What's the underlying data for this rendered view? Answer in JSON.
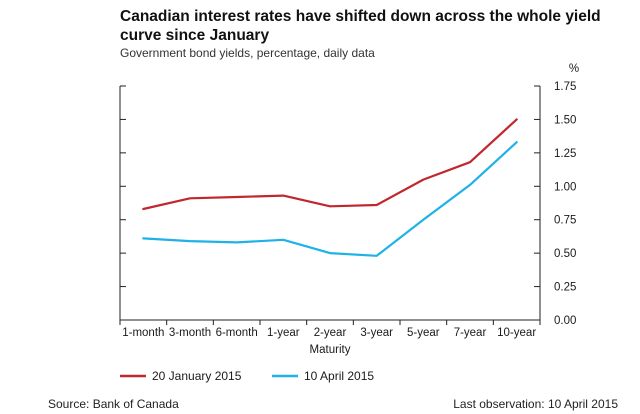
{
  "header": {
    "title": "Canadian interest rates have shifted down across the whole yield curve since January",
    "subtitle": "Government bond yields, percentage, daily data"
  },
  "footer": {
    "source": "Source: Bank of Canada",
    "last_observation": "Last observation: 10 April 2015"
  },
  "chart_data": {
    "type": "line",
    "categories": [
      "1-month",
      "3-month",
      "6-month",
      "1-year",
      "2-year",
      "3-year",
      "5-year",
      "7-year",
      "10-year"
    ],
    "xlabel": "Maturity",
    "yunit": "%",
    "ylim": [
      0,
      1.75
    ],
    "yticks": [
      "0.00",
      "0.25",
      "0.50",
      "0.75",
      "1.00",
      "1.25",
      "1.50",
      "1.75"
    ],
    "ytick_values": [
      0,
      0.25,
      0.5,
      0.75,
      1.0,
      1.25,
      1.5,
      1.75
    ],
    "grid": false,
    "legend_position": "bottom-left",
    "series": [
      {
        "name": "20 January 2015",
        "color": "#c0282d",
        "values": [
          0.83,
          0.91,
          0.92,
          0.93,
          0.85,
          0.86,
          1.05,
          1.18,
          1.5
        ]
      },
      {
        "name": "10 April 2015",
        "color": "#1fb2e6",
        "values": [
          0.61,
          0.59,
          0.58,
          0.6,
          0.5,
          0.48,
          0.75,
          1.01,
          1.33
        ]
      }
    ]
  }
}
